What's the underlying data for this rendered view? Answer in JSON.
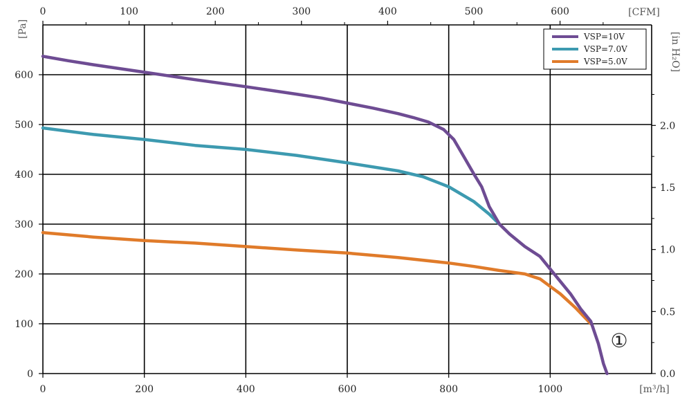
{
  "chart_data": {
    "type": "line",
    "x_unit": "[m³/h]",
    "x2_unit": "[CFM]",
    "y_unit": "[Pa]",
    "y2_unit": "[in H₂O]",
    "xlim": [
      0,
      1200
    ],
    "ylim": [
      0,
      700
    ],
    "x_ticks": [
      0,
      200,
      400,
      600,
      800,
      1000
    ],
    "y_ticks": [
      0,
      100,
      200,
      300,
      400,
      500,
      600
    ],
    "x2_ticks": [
      0,
      100,
      200,
      300,
      400,
      500,
      600
    ],
    "y2_ticks": [
      "0.0",
      "0.5",
      "1.0",
      "1.5",
      "2.0"
    ],
    "grid": true,
    "legend_position": "top-right",
    "annotation": "①",
    "series": [
      {
        "name": "VSP=10V",
        "color": "#6e4c93",
        "points": [
          [
            0,
            637
          ],
          [
            50,
            628
          ],
          [
            100,
            620
          ],
          [
            200,
            605
          ],
          [
            300,
            590
          ],
          [
            400,
            576
          ],
          [
            500,
            561
          ],
          [
            550,
            553
          ],
          [
            600,
            543
          ],
          [
            650,
            533
          ],
          [
            700,
            522
          ],
          [
            730,
            514
          ],
          [
            760,
            505
          ],
          [
            790,
            490
          ],
          [
            810,
            470
          ],
          [
            830,
            435
          ],
          [
            850,
            400
          ],
          [
            865,
            375
          ],
          [
            880,
            335
          ],
          [
            900,
            300
          ],
          [
            920,
            280
          ],
          [
            950,
            255
          ],
          [
            980,
            235
          ],
          [
            1000,
            210
          ],
          [
            1020,
            185
          ],
          [
            1040,
            160
          ],
          [
            1060,
            130
          ],
          [
            1080,
            105
          ],
          [
            1095,
            60
          ],
          [
            1105,
            20
          ],
          [
            1112,
            0
          ]
        ]
      },
      {
        "name": "VSP=7.0V",
        "color": "#3d9ab0",
        "points": [
          [
            0,
            493
          ],
          [
            100,
            480
          ],
          [
            200,
            470
          ],
          [
            300,
            458
          ],
          [
            400,
            450
          ],
          [
            500,
            438
          ],
          [
            600,
            423
          ],
          [
            700,
            407
          ],
          [
            750,
            395
          ],
          [
            800,
            375
          ],
          [
            850,
            345
          ],
          [
            880,
            320
          ],
          [
            900,
            300
          ]
        ]
      },
      {
        "name": "VSP=5.0V",
        "color": "#e07b2a",
        "points": [
          [
            0,
            283
          ],
          [
            100,
            274
          ],
          [
            200,
            267
          ],
          [
            300,
            262
          ],
          [
            400,
            255
          ],
          [
            500,
            248
          ],
          [
            600,
            242
          ],
          [
            700,
            233
          ],
          [
            800,
            222
          ],
          [
            850,
            215
          ],
          [
            900,
            207
          ],
          [
            950,
            200
          ],
          [
            980,
            190
          ],
          [
            1000,
            175
          ],
          [
            1020,
            160
          ],
          [
            1050,
            132
          ],
          [
            1080,
            100
          ]
        ]
      }
    ]
  }
}
